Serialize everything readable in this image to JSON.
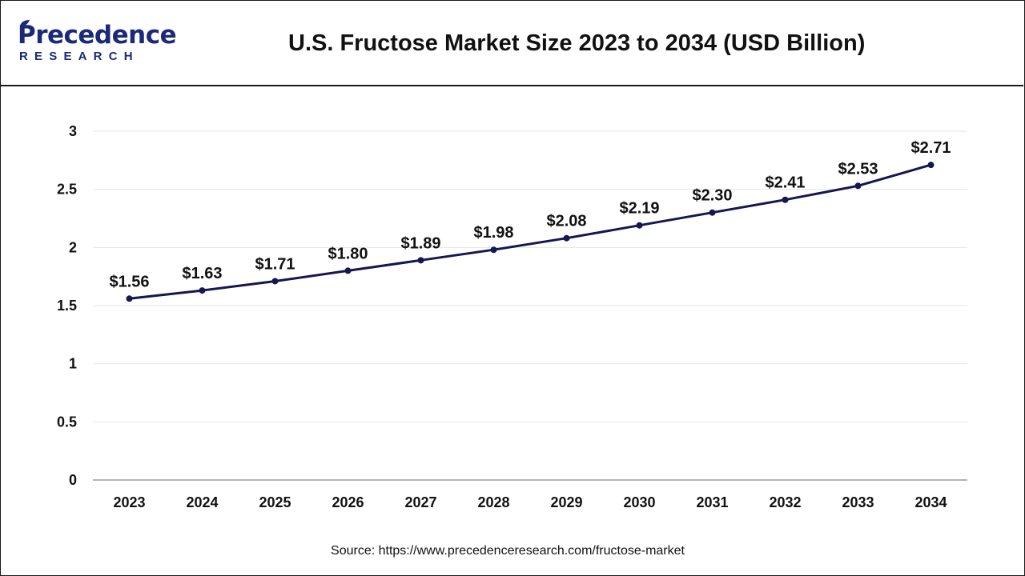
{
  "brand": {
    "name": "Precedence",
    "subtitle": "RESEARCH",
    "color": "#1b2a78"
  },
  "chart_data": {
    "type": "line",
    "title": "U.S. Fructose Market Size 2023 to 2034 (USD Billion)",
    "categories": [
      "2023",
      "2024",
      "2025",
      "2026",
      "2027",
      "2028",
      "2029",
      "2030",
      "2031",
      "2032",
      "2033",
      "2034"
    ],
    "series": [
      {
        "values": [
          1.56,
          1.63,
          1.71,
          1.8,
          1.89,
          1.98,
          2.08,
          2.19,
          2.3,
          2.41,
          2.53,
          2.71
        ]
      }
    ],
    "data_labels": [
      "$1.56",
      "$1.63",
      "$1.71",
      "$1.80",
      "$1.89",
      "$1.98",
      "$2.08",
      "$2.19",
      "$2.30",
      "$2.41",
      "$2.53",
      "$2.71"
    ],
    "ylim": [
      0,
      3
    ],
    "yticks": [
      0,
      0.5,
      1,
      1.5,
      2,
      2.5,
      3
    ],
    "ytick_labels": [
      "0",
      "0.5",
      "1",
      "1.5",
      "2",
      "2.5",
      "3"
    ],
    "grid": true,
    "line_color": "#15174d"
  },
  "source": "Source: https://www.precedenceresearch.com/fructose-market"
}
